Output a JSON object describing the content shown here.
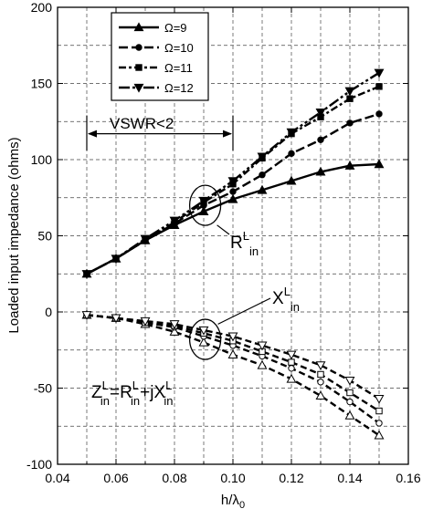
{
  "chart_data": {
    "type": "line",
    "xlabel": {
      "main": "h/λ",
      "sub": "0"
    },
    "ylabel": "Loaded input impedance (ohms)",
    "xlim": [
      0.04,
      0.16
    ],
    "ylim": [
      -100,
      200
    ],
    "x_ticks": [
      0.04,
      0.06,
      0.08,
      0.1,
      0.12,
      0.14,
      0.16
    ],
    "x_tick_labels": [
      "0.04",
      "0.06",
      "0.08",
      "0.10",
      "0.12",
      "0.14",
      "0.16"
    ],
    "y_ticks": [
      -100,
      -50,
      0,
      50,
      100,
      150,
      200
    ],
    "y_tick_labels": [
      "-100",
      "-50",
      "0",
      "50",
      "100",
      "150",
      "200"
    ],
    "grid": true,
    "legend_position": "top-left",
    "x": [
      0.05,
      0.06,
      0.07,
      0.08,
      0.09,
      0.1,
      0.11,
      0.12,
      0.13,
      0.14,
      0.15
    ],
    "series": [
      {
        "name": "Ω=9",
        "marker": "triangle-up",
        "resistance": [
          25,
          35,
          47,
          57,
          66,
          74,
          80,
          86,
          92,
          96,
          97
        ],
        "reactance": [
          -2,
          -4,
          -8,
          -13,
          -20,
          -28,
          -35,
          -44,
          -55,
          -68,
          -81
        ]
      },
      {
        "name": "Ω=10",
        "marker": "circle",
        "resistance": [
          25,
          35,
          47,
          58,
          70,
          79,
          90,
          104,
          113,
          124,
          130
        ],
        "reactance": [
          -2,
          -4,
          -7,
          -10,
          -16,
          -22,
          -29,
          -37,
          -46,
          -59,
          -73
        ]
      },
      {
        "name": "Ω=11",
        "marker": "square",
        "resistance": [
          25,
          35,
          47,
          59,
          72,
          84,
          101,
          117,
          128,
          140,
          148
        ],
        "reactance": [
          -2,
          -4,
          -7,
          -9,
          -14,
          -19,
          -26,
          -33,
          -41,
          -53,
          -65
        ]
      },
      {
        "name": "Ω=12",
        "marker": "triangle-down",
        "resistance": [
          25,
          35,
          48,
          60,
          73,
          86,
          102,
          118,
          131,
          145,
          157
        ],
        "reactance": [
          -2,
          -4,
          -6,
          -8,
          -12,
          -16,
          -22,
          -28,
          -35,
          -45,
          -57
        ]
      }
    ],
    "annotations": {
      "vswr": {
        "text": "VSWR<2",
        "x_start": 0.05,
        "x_end": 0.1,
        "y": 117
      },
      "rin": {
        "main": "R",
        "sup": "L",
        "sub": "in"
      },
      "xin": {
        "main": "X",
        "sup": "L",
        "sub": "in"
      },
      "equation": {
        "z": "Z",
        "z_sup": "L",
        "z_sub": "in",
        "eq": "=R",
        "r_sup": "L",
        "r_sub": "in",
        "plus": "+jX",
        "x_sup": "L",
        "x_sub": "in"
      }
    }
  }
}
